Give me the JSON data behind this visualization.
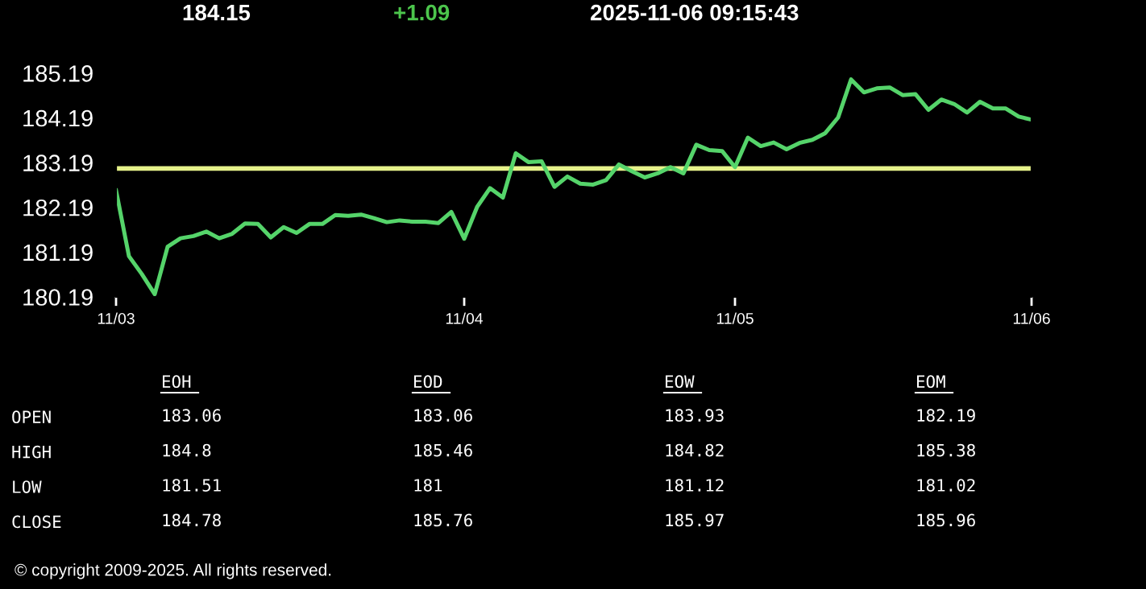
{
  "chart_data": [
    {
      "type": "line",
      "title": "184.15",
      "subtitle": "+1.09",
      "annotations": [
        "2025-11-06 09:15:43"
      ],
      "categories": [
        "11/03",
        null,
        null,
        null,
        null,
        null,
        null,
        null,
        null,
        null,
        null,
        null,
        null,
        null,
        null,
        null,
        null,
        null,
        null,
        null,
        null,
        null,
        null,
        null,
        null,
        null,
        null,
        "11/04",
        null,
        null,
        null,
        null,
        null,
        null,
        null,
        null,
        null,
        null,
        null,
        null,
        null,
        null,
        null,
        null,
        null,
        null,
        null,
        null,
        "11/05",
        null,
        null,
        null,
        null,
        null,
        null,
        null,
        null,
        null,
        null,
        null,
        null,
        null,
        null,
        null,
        null,
        null,
        null,
        null,
        null,
        null,
        null,
        "11/06"
      ],
      "series": [
        {
          "color": "#55d46a",
          "values": [
            182.57,
            181.1,
            180.7,
            180.25,
            181.31,
            181.5,
            181.55,
            181.65,
            181.5,
            181.6,
            181.83,
            181.82,
            181.52,
            181.75,
            181.62,
            181.82,
            181.82,
            182.02,
            182.0,
            182.03,
            181.95,
            181.86,
            181.9,
            181.87,
            181.87,
            181.84,
            182.09,
            181.49,
            182.2,
            182.62,
            182.41,
            183.4,
            183.2,
            183.22,
            182.65,
            182.88,
            182.72,
            182.7,
            182.8,
            183.15,
            183.0,
            182.86,
            182.95,
            183.09,
            182.95,
            183.59,
            183.47,
            183.45,
            183.09,
            183.75,
            183.56,
            183.64,
            183.49,
            183.63,
            183.7,
            183.85,
            184.2,
            185.05,
            184.76,
            184.85,
            184.87,
            184.7,
            184.72,
            184.37,
            184.6,
            184.5,
            184.31,
            184.55,
            184.4,
            184.4,
            184.22,
            184.15
          ]
        }
      ],
      "ylim": [
        180.19,
        185.35
      ],
      "yticks": [
        180.19,
        181.19,
        182.19,
        183.19,
        184.19,
        185.19
      ],
      "ref_lines": [
        {
          "axis": "y",
          "value": 183.06,
          "color": "#e6f28a"
        }
      ],
      "grid": false
    },
    {
      "type": "other",
      "categories": [
        "EOH",
        "EOD",
        "EOW",
        "EOM"
      ],
      "y_categories": [
        "OPEN",
        "HIGH",
        "LOW",
        "CLOSE"
      ],
      "cell_labels": [
        [
          "183.06",
          "183.06",
          "183.93",
          "182.19"
        ],
        [
          "184.8",
          "185.46",
          "184.82",
          "185.38"
        ],
        [
          "181.51",
          "181",
          "181.12",
          "181.02"
        ],
        [
          "184.78",
          "185.76",
          "185.97",
          "185.96"
        ]
      ],
      "annotations": [
        "© copyright 2009-2025. All rights reserved."
      ]
    }
  ]
}
